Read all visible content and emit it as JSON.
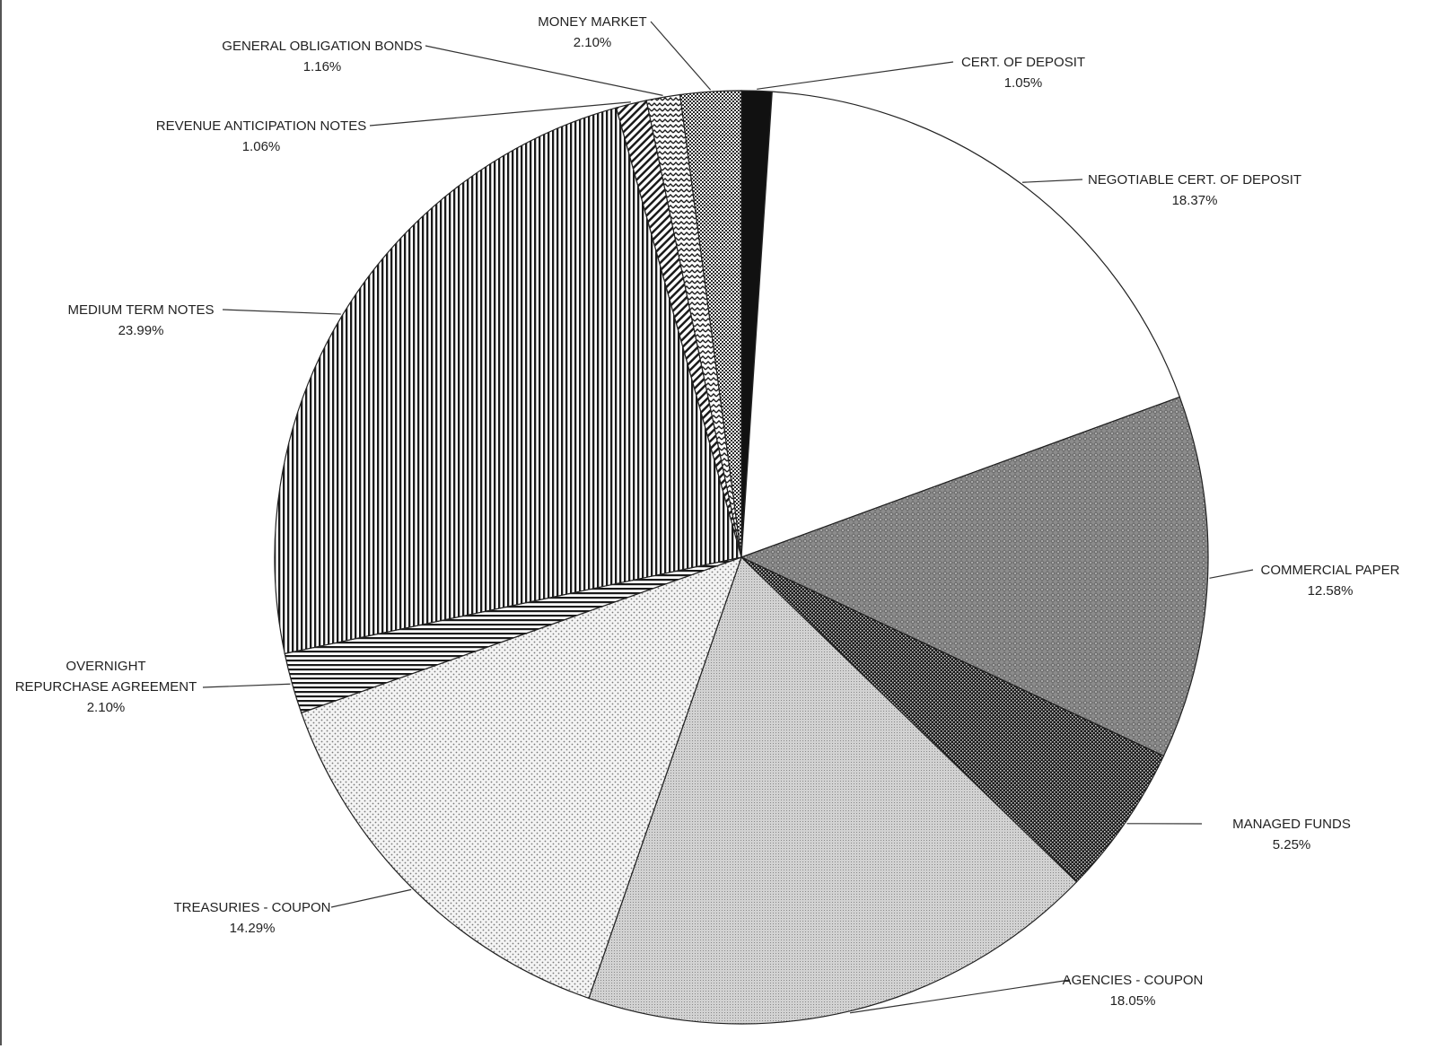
{
  "chart_data": {
    "type": "pie",
    "start_angle_deg": 0,
    "direction": "clockwise",
    "colors": {
      "outline": "#222222",
      "text": "#222222"
    },
    "slices": [
      {
        "label": "CERT. OF DEPOSIT",
        "value": 1.05,
        "value_label": "1.05%",
        "pattern": "solid-black"
      },
      {
        "label": "NEGOTIABLE  CERT. OF DEPOSIT",
        "value": 18.37,
        "value_label": "18.37%",
        "pattern": "white"
      },
      {
        "label": "COMMERCIAL PAPER",
        "value": 12.58,
        "value_label": "12.58%",
        "pattern": "gray-diamond-weave"
      },
      {
        "label": "MANAGED FUNDS",
        "value": 5.25,
        "value_label": "5.25%",
        "pattern": "dark-checker"
      },
      {
        "label": "AGENCIES - COUPON",
        "value": 18.05,
        "value_label": "18.05%",
        "pattern": "light-gray-fine-dots"
      },
      {
        "label": "TREASURIES - COUPON",
        "value": 14.29,
        "value_label": "14.29%",
        "pattern": "sparse-dots"
      },
      {
        "label": "OVERNIGHT REPURCHASE AGREEMENT",
        "label_lines": [
          "OVERNIGHT",
          "REPURCHASE AGREEMENT"
        ],
        "value": 2.1,
        "value_label": "2.10%",
        "pattern": "horizontal-stripes"
      },
      {
        "label": "MEDIUM TERM NOTES",
        "value": 23.99,
        "value_label": "23.99%",
        "pattern": "vertical-stripes"
      },
      {
        "label": "REVENUE ANTICIPATION NOTES",
        "value": 1.06,
        "value_label": "1.06%",
        "pattern": "diagonal-stripes"
      },
      {
        "label": "GENERAL OBLIGATION BONDS",
        "value": 1.16,
        "value_label": "1.16%",
        "pattern": "zigzag"
      },
      {
        "label": "MONEY MARKET",
        "value": 2.1,
        "value_label": "2.10%",
        "pattern": "checker"
      }
    ]
  }
}
